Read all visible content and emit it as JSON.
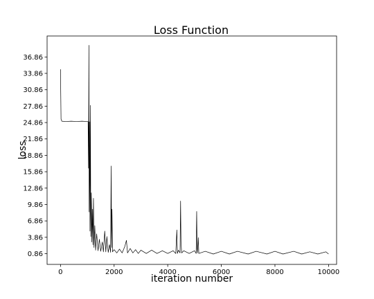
{
  "chart_data": {
    "type": "line",
    "title": "Loss Function",
    "xlabel": "iteration number",
    "ylabel": "loss",
    "xlim": [
      -500,
      10300
    ],
    "ylim": [
      -1.1,
      40.7
    ],
    "xticks": [
      0,
      2000,
      4000,
      6000,
      8000,
      10000
    ],
    "xtick_labels": [
      "0",
      "2000",
      "4000",
      "6000",
      "8000",
      "10000"
    ],
    "yticks": [
      0.86,
      3.86,
      6.86,
      9.86,
      12.86,
      15.86,
      18.86,
      21.86,
      24.86,
      27.86,
      30.86,
      33.86,
      36.86
    ],
    "ytick_labels": [
      "0.86",
      "3.86",
      "6.86",
      "9.86",
      "12.86",
      "15.86",
      "18.86",
      "21.86",
      "24.86",
      "27.86",
      "30.86",
      "33.86",
      "36.86"
    ],
    "grid": false,
    "series": [
      {
        "color": "#000000",
        "points": [
          [
            0,
            34.6
          ],
          [
            20,
            25.5
          ],
          [
            50,
            25.1
          ],
          [
            200,
            25.05
          ],
          [
            400,
            25.1
          ],
          [
            600,
            25.05
          ],
          [
            800,
            25.1
          ],
          [
            1000,
            25.05
          ],
          [
            1030,
            25.0
          ],
          [
            1045,
            16.5
          ],
          [
            1060,
            39.0
          ],
          [
            1070,
            8.5
          ],
          [
            1085,
            25.0
          ],
          [
            1100,
            5.0
          ],
          [
            1115,
            28.0
          ],
          [
            1130,
            4.0
          ],
          [
            1150,
            12.0
          ],
          [
            1170,
            3.0
          ],
          [
            1190,
            9.0
          ],
          [
            1210,
            2.5
          ],
          [
            1230,
            11.0
          ],
          [
            1250,
            2.0
          ],
          [
            1280,
            6.0
          ],
          [
            1310,
            1.5
          ],
          [
            1350,
            4.5
          ],
          [
            1400,
            1.4
          ],
          [
            1450,
            3.5
          ],
          [
            1500,
            1.3
          ],
          [
            1560,
            3.0
          ],
          [
            1600,
            1.2
          ],
          [
            1650,
            5.0
          ],
          [
            1690,
            1.2
          ],
          [
            1730,
            4.0
          ],
          [
            1780,
            1.1
          ],
          [
            1830,
            2.5
          ],
          [
            1870,
            1.1
          ],
          [
            1890,
            16.9
          ],
          [
            1905,
            2.0
          ],
          [
            1920,
            9.0
          ],
          [
            1940,
            1.2
          ],
          [
            2000,
            1.6
          ],
          [
            2100,
            1.0
          ],
          [
            2200,
            1.7
          ],
          [
            2300,
            1.0
          ],
          [
            2400,
            2.2
          ],
          [
            2460,
            3.3
          ],
          [
            2500,
            1.0
          ],
          [
            2600,
            1.8
          ],
          [
            2700,
            1.0
          ],
          [
            2800,
            1.6
          ],
          [
            2900,
            0.9
          ],
          [
            3000,
            1.5
          ],
          [
            3200,
            0.9
          ],
          [
            3400,
            1.5
          ],
          [
            3600,
            0.9
          ],
          [
            3800,
            1.4
          ],
          [
            4000,
            0.9
          ],
          [
            4200,
            1.4
          ],
          [
            4300,
            0.9
          ],
          [
            4340,
            5.2
          ],
          [
            4360,
            0.9
          ],
          [
            4400,
            1.5
          ],
          [
            4460,
            1.0
          ],
          [
            4480,
            10.5
          ],
          [
            4495,
            3.0
          ],
          [
            4520,
            1.0
          ],
          [
            4600,
            1.4
          ],
          [
            4800,
            0.9
          ],
          [
            5000,
            1.4
          ],
          [
            5060,
            0.9
          ],
          [
            5080,
            8.6
          ],
          [
            5095,
            2.0
          ],
          [
            5110,
            1.0
          ],
          [
            5140,
            3.8
          ],
          [
            5160,
            0.9
          ],
          [
            5400,
            1.3
          ],
          [
            5700,
            0.8
          ],
          [
            6000,
            1.3
          ],
          [
            6300,
            0.8
          ],
          [
            6600,
            1.3
          ],
          [
            7000,
            0.8
          ],
          [
            7300,
            1.3
          ],
          [
            7700,
            0.8
          ],
          [
            8000,
            1.3
          ],
          [
            8300,
            0.8
          ],
          [
            8700,
            1.3
          ],
          [
            9000,
            0.8
          ],
          [
            9300,
            1.2
          ],
          [
            9600,
            0.8
          ],
          [
            9900,
            1.2
          ],
          [
            10000,
            0.8
          ]
        ]
      }
    ]
  }
}
